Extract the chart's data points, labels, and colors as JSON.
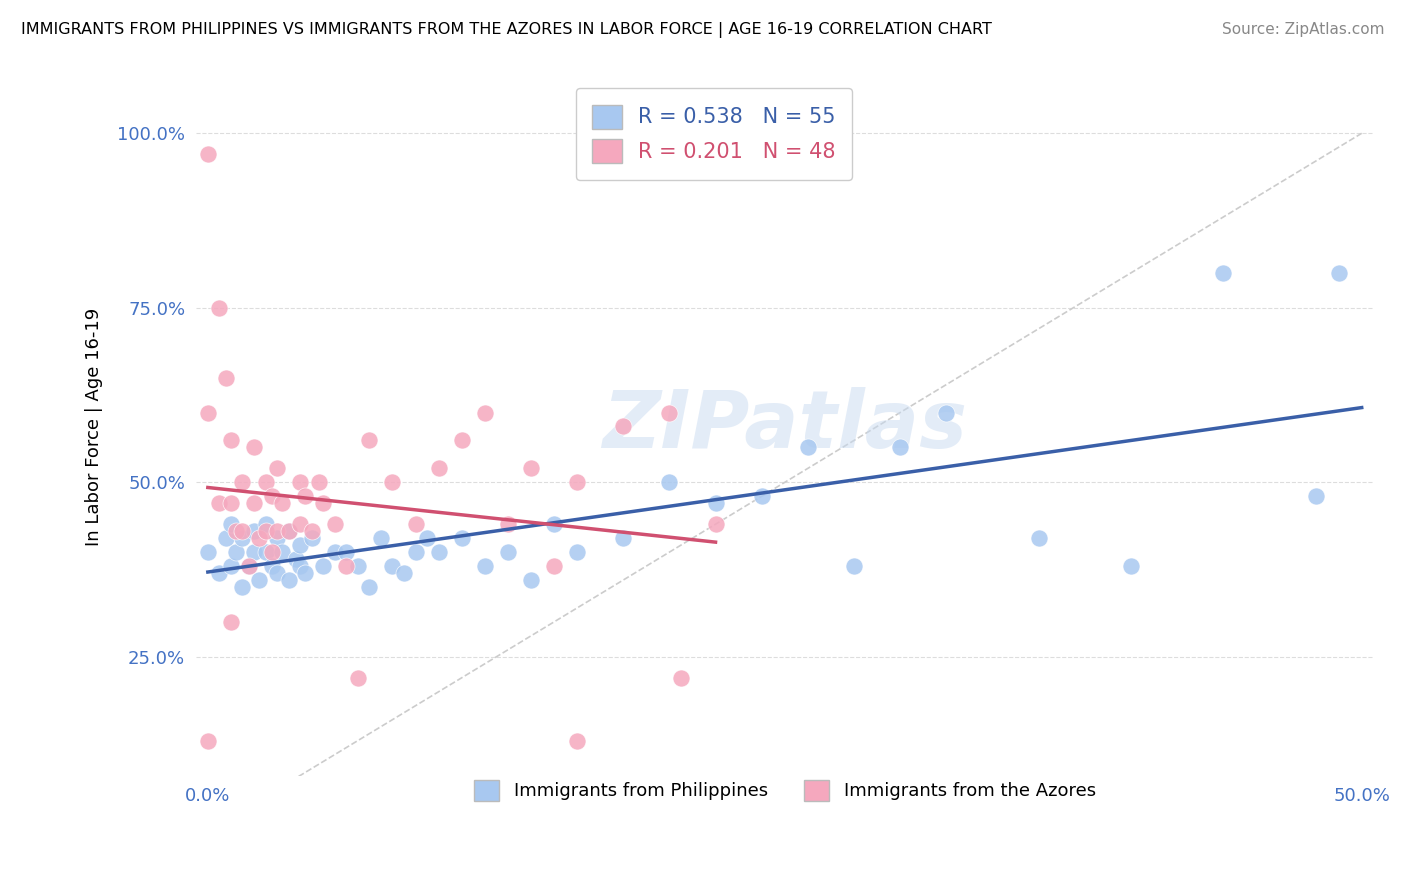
{
  "title": "IMMIGRANTS FROM PHILIPPINES VS IMMIGRANTS FROM THE AZORES IN LABOR FORCE | AGE 16-19 CORRELATION CHART",
  "source": "Source: ZipAtlas.com",
  "ylabel": "In Labor Force | Age 16-19",
  "ytick_labels": [
    "25.0%",
    "50.0%",
    "75.0%",
    "100.0%"
  ],
  "ytick_values": [
    0.25,
    0.5,
    0.75,
    1.0
  ],
  "xlim": [
    -0.005,
    0.505
  ],
  "ylim": [
    0.08,
    1.08
  ],
  "blue_R": 0.538,
  "blue_N": 55,
  "pink_R": 0.201,
  "pink_N": 48,
  "blue_color": "#a8c8f0",
  "pink_color": "#f5a8be",
  "blue_line_color": "#3a5fa8",
  "pink_line_color": "#d05070",
  "legend_label_blue": "Immigrants from Philippines",
  "legend_label_pink": "Immigrants from the Azores",
  "blue_scatter_x": [
    0.0,
    0.005,
    0.008,
    0.01,
    0.01,
    0.012,
    0.015,
    0.015,
    0.018,
    0.02,
    0.02,
    0.022,
    0.025,
    0.025,
    0.028,
    0.03,
    0.03,
    0.032,
    0.035,
    0.035,
    0.038,
    0.04,
    0.04,
    0.042,
    0.045,
    0.05,
    0.055,
    0.06,
    0.065,
    0.07,
    0.075,
    0.08,
    0.085,
    0.09,
    0.095,
    0.1,
    0.11,
    0.12,
    0.13,
    0.14,
    0.15,
    0.16,
    0.18,
    0.2,
    0.22,
    0.24,
    0.26,
    0.28,
    0.3,
    0.32,
    0.36,
    0.4,
    0.44,
    0.48,
    0.49
  ],
  "blue_scatter_y": [
    0.4,
    0.37,
    0.42,
    0.38,
    0.44,
    0.4,
    0.35,
    0.42,
    0.38,
    0.4,
    0.43,
    0.36,
    0.4,
    0.44,
    0.38,
    0.37,
    0.42,
    0.4,
    0.36,
    0.43,
    0.39,
    0.38,
    0.41,
    0.37,
    0.42,
    0.38,
    0.4,
    0.4,
    0.38,
    0.35,
    0.42,
    0.38,
    0.37,
    0.4,
    0.42,
    0.4,
    0.42,
    0.38,
    0.4,
    0.36,
    0.44,
    0.4,
    0.42,
    0.5,
    0.47,
    0.48,
    0.55,
    0.38,
    0.55,
    0.6,
    0.42,
    0.38,
    0.8,
    0.48,
    0.8
  ],
  "pink_scatter_x": [
    0.0,
    0.0,
    0.0,
    0.005,
    0.005,
    0.008,
    0.01,
    0.01,
    0.012,
    0.015,
    0.015,
    0.018,
    0.02,
    0.02,
    0.022,
    0.025,
    0.025,
    0.028,
    0.028,
    0.03,
    0.03,
    0.032,
    0.035,
    0.04,
    0.04,
    0.042,
    0.045,
    0.048,
    0.05,
    0.055,
    0.06,
    0.065,
    0.07,
    0.08,
    0.09,
    0.1,
    0.11,
    0.12,
    0.13,
    0.14,
    0.15,
    0.16,
    0.18,
    0.2,
    0.205,
    0.22,
    0.01,
    0.16
  ],
  "pink_scatter_y": [
    0.97,
    0.6,
    0.13,
    0.75,
    0.47,
    0.65,
    0.56,
    0.47,
    0.43,
    0.5,
    0.43,
    0.38,
    0.55,
    0.47,
    0.42,
    0.5,
    0.43,
    0.48,
    0.4,
    0.52,
    0.43,
    0.47,
    0.43,
    0.5,
    0.44,
    0.48,
    0.43,
    0.5,
    0.47,
    0.44,
    0.38,
    0.22,
    0.56,
    0.5,
    0.44,
    0.52,
    0.56,
    0.6,
    0.44,
    0.52,
    0.38,
    0.5,
    0.58,
    0.6,
    0.22,
    0.44,
    0.3,
    0.13
  ],
  "ref_line_x": [
    0.0,
    0.5
  ],
  "ref_line_y": [
    0.0,
    1.0
  ]
}
